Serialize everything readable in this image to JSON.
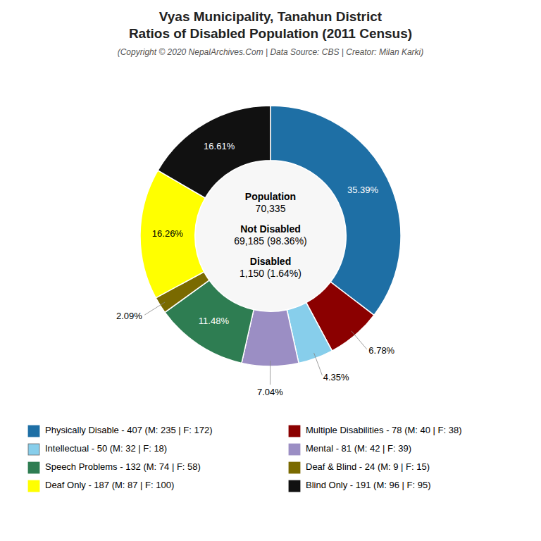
{
  "chart_data": {
    "type": "donut",
    "title": [
      "Vyas Municipality, Tanahun District",
      "Ratios of Disabled Population (2011 Census)"
    ],
    "subtitle": "(Copyright © 2020 NepalArchives.Com | Data Source: CBS | Creator: Milan Karki)",
    "categories": [
      "Physically Disable - 407 (M: 235 | F: 172)",
      "Multiple Disabilities - 78 (M: 40 | F: 38)",
      "Intellectual - 50 (M: 32 | F: 18)",
      "Mental - 81 (M: 42 | F: 39)",
      "Speech Problems - 132 (M: 74 | F: 58)",
      "Deaf & Blind - 24 (M: 9 | F: 15)",
      "Deaf Only - 187 (M: 87 | F: 100)",
      "Blind Only - 191 (M: 96 | F: 95)"
    ],
    "values": [
      35.39,
      6.78,
      4.35,
      7.04,
      11.48,
      2.09,
      16.26,
      16.61
    ],
    "value_labels": [
      "35.39%",
      "6.78%",
      "4.35%",
      "7.04%",
      "11.48%",
      "2.09%",
      "16.26%",
      "16.61%"
    ],
    "colors": [
      "#1e6fa5",
      "#8b0000",
      "#87ceeb",
      "#9b8ec4",
      "#2e7d52",
      "#7a6a00",
      "#ffff00",
      "#111111"
    ],
    "data_labels": true,
    "legend": "bottom",
    "annotations": [
      "Population",
      "70,335",
      "Not Disabled",
      "69,185 (98.36%)",
      "Disabled",
      "1,150 (1.64%)"
    ]
  }
}
